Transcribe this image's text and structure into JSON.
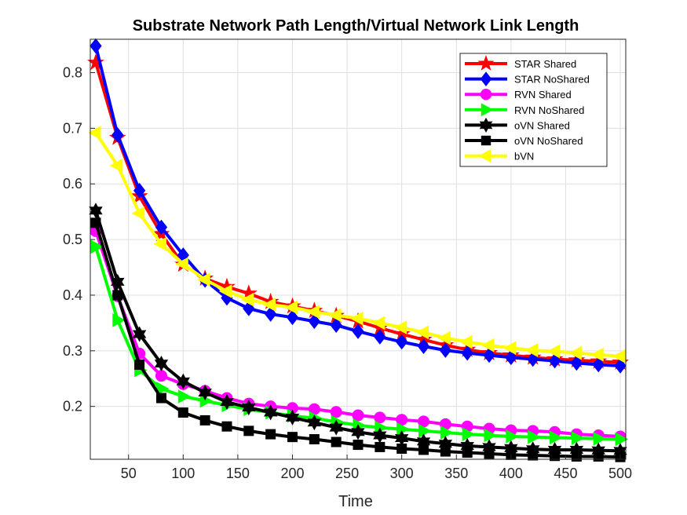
{
  "chart_data": {
    "type": "line",
    "title": "Substrate Network Path Length/Virtual Network Link Length",
    "xlabel": "Time",
    "ylabel": "",
    "xlim": [
      15,
      505
    ],
    "ylim": [
      0.105,
      0.86
    ],
    "xticks": [
      50,
      100,
      150,
      200,
      250,
      300,
      350,
      400,
      450,
      500
    ],
    "yticks": [
      0.2,
      0.3,
      0.4,
      0.5,
      0.6,
      0.7,
      0.8
    ],
    "grid": true,
    "legend_position": "top-right",
    "x": [
      20,
      40,
      60,
      80,
      100,
      120,
      140,
      160,
      180,
      200,
      220,
      240,
      260,
      280,
      300,
      320,
      340,
      360,
      380,
      400,
      420,
      440,
      460,
      480,
      500
    ],
    "series": [
      {
        "name": "STAR Shared",
        "color": "#ff0000",
        "marker": "star",
        "values": [
          0.818,
          0.683,
          0.578,
          0.51,
          0.455,
          0.43,
          0.415,
          0.403,
          0.388,
          0.38,
          0.372,
          0.363,
          0.353,
          0.341,
          0.33,
          0.32,
          0.31,
          0.302,
          0.296,
          0.292,
          0.288,
          0.285,
          0.283,
          0.281,
          0.279
        ]
      },
      {
        "name": "STAR NoShared",
        "color": "#0000ff",
        "marker": "diamond",
        "values": [
          0.848,
          0.688,
          0.588,
          0.522,
          0.472,
          0.427,
          0.395,
          0.376,
          0.366,
          0.36,
          0.353,
          0.346,
          0.335,
          0.325,
          0.316,
          0.308,
          0.301,
          0.296,
          0.292,
          0.288,
          0.285,
          0.282,
          0.278,
          0.275,
          0.273
        ]
      },
      {
        "name": "RVN Shared",
        "color": "#ff00ff",
        "marker": "circle",
        "values": [
          0.515,
          0.398,
          0.295,
          0.255,
          0.24,
          0.228,
          0.215,
          0.205,
          0.2,
          0.197,
          0.195,
          0.19,
          0.184,
          0.18,
          0.176,
          0.173,
          0.168,
          0.164,
          0.16,
          0.157,
          0.156,
          0.154,
          0.15,
          0.148,
          0.146
        ]
      },
      {
        "name": "RVN NoShared",
        "color": "#00ff00",
        "marker": "triangle-right",
        "values": [
          0.487,
          0.355,
          0.265,
          0.232,
          0.218,
          0.21,
          0.202,
          0.195,
          0.189,
          0.183,
          0.179,
          0.172,
          0.166,
          0.162,
          0.159,
          0.156,
          0.153,
          0.15,
          0.148,
          0.146,
          0.145,
          0.144,
          0.143,
          0.142,
          0.141
        ]
      },
      {
        "name": "oVN Shared",
        "color": "#000000",
        "marker": "hexagram",
        "values": [
          0.552,
          0.424,
          0.33,
          0.277,
          0.245,
          0.225,
          0.208,
          0.198,
          0.189,
          0.18,
          0.171,
          0.162,
          0.154,
          0.148,
          0.143,
          0.137,
          0.133,
          0.129,
          0.127,
          0.125,
          0.123,
          0.122,
          0.122,
          0.121,
          0.12
        ]
      },
      {
        "name": "oVN NoShared",
        "color": "#000000",
        "marker": "square",
        "values": [
          0.53,
          0.4,
          0.275,
          0.215,
          0.189,
          0.175,
          0.164,
          0.156,
          0.15,
          0.145,
          0.141,
          0.136,
          0.131,
          0.127,
          0.124,
          0.122,
          0.119,
          0.117,
          0.115,
          0.113,
          0.112,
          0.111,
          0.11,
          0.11,
          0.109
        ]
      },
      {
        "name": "bVN",
        "color": "#ffff00",
        "marker": "triangle-left",
        "values": [
          0.692,
          0.633,
          0.547,
          0.492,
          0.456,
          0.428,
          0.407,
          0.392,
          0.383,
          0.378,
          0.37,
          0.364,
          0.358,
          0.35,
          0.342,
          0.333,
          0.323,
          0.316,
          0.31,
          0.305,
          0.301,
          0.299,
          0.296,
          0.293,
          0.29
        ]
      }
    ]
  }
}
